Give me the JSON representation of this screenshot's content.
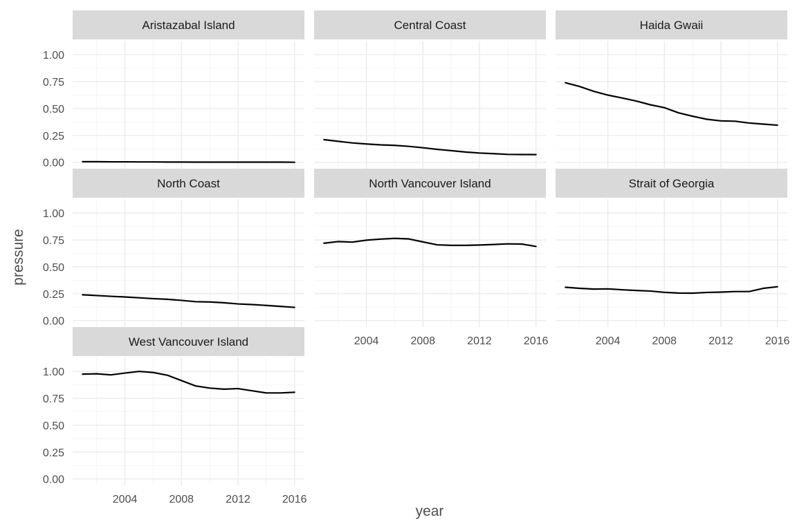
{
  "chart_data": {
    "type": "line",
    "layout": "facet_wrap",
    "xlabel": "year",
    "ylabel": "pressure",
    "xlim": [
      2001,
      2016
    ],
    "ylim": [
      0,
      1
    ],
    "x_ticks": [
      2004,
      2008,
      2012,
      2016
    ],
    "y_ticks": [
      0,
      0.25,
      0.5,
      0.75,
      1
    ],
    "y_tick_labels": [
      "0.00",
      "0.25",
      "0.50",
      "0.75",
      "1.00"
    ],
    "grid": true,
    "legend": "none",
    "line_color": "#000000",
    "strip_color": "#d9d9d9",
    "x": [
      2001,
      2002,
      2003,
      2004,
      2005,
      2006,
      2007,
      2008,
      2009,
      2010,
      2011,
      2012,
      2013,
      2014,
      2015,
      2016
    ],
    "panels": [
      {
        "name": "Aristazabal Island",
        "values": [
          0.005,
          0.005,
          0.004,
          0.004,
          0.003,
          0.003,
          0.002,
          0.002,
          0.001,
          0.001,
          0.001,
          0.001,
          0.001,
          0.001,
          0.001,
          0.0
        ]
      },
      {
        "name": "Central Coast",
        "values": [
          0.21,
          0.195,
          0.18,
          0.17,
          0.162,
          0.157,
          0.148,
          0.135,
          0.12,
          0.108,
          0.095,
          0.086,
          0.08,
          0.073,
          0.072,
          0.071
        ]
      },
      {
        "name": "Haida Gwaii",
        "values": [
          0.74,
          0.705,
          0.66,
          0.625,
          0.598,
          0.57,
          0.535,
          0.508,
          0.46,
          0.428,
          0.4,
          0.385,
          0.382,
          0.365,
          0.355,
          0.345
        ]
      },
      {
        "name": "North Coast",
        "values": [
          0.24,
          0.233,
          0.226,
          0.22,
          0.212,
          0.204,
          0.198,
          0.188,
          0.176,
          0.173,
          0.166,
          0.155,
          0.149,
          0.141,
          0.132,
          0.123
        ]
      },
      {
        "name": "North Vancouver Island",
        "values": [
          0.72,
          0.735,
          0.73,
          0.748,
          0.758,
          0.765,
          0.76,
          0.732,
          0.705,
          0.7,
          0.7,
          0.703,
          0.708,
          0.714,
          0.712,
          0.69
        ]
      },
      {
        "name": "Strait of Georgia",
        "values": [
          0.31,
          0.3,
          0.293,
          0.295,
          0.287,
          0.28,
          0.275,
          0.263,
          0.256,
          0.255,
          0.262,
          0.265,
          0.27,
          0.27,
          0.3,
          0.315
        ]
      },
      {
        "name": "West Vancouver Island",
        "values": [
          0.975,
          0.978,
          0.968,
          0.985,
          1.0,
          0.99,
          0.965,
          0.915,
          0.865,
          0.845,
          0.835,
          0.84,
          0.82,
          0.8,
          0.8,
          0.806
        ]
      }
    ]
  }
}
